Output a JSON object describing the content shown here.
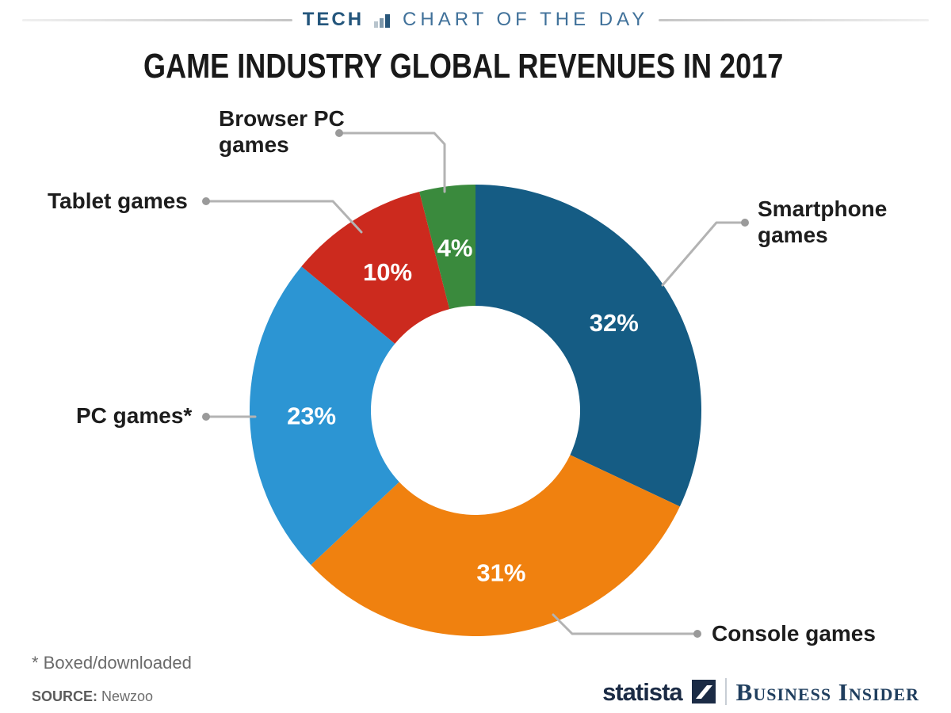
{
  "header": {
    "tech_label": "TECH",
    "series_label": "CHART OF THE DAY",
    "tech_color": "#24567c",
    "series_color": "#40719a"
  },
  "title": "GAME INDUSTRY GLOBAL REVENUES IN 2017",
  "chart_data": {
    "type": "pie",
    "donut": true,
    "title": "GAME INDUSTRY GLOBAL REVENUES IN 2017",
    "start_angle_deg": 0,
    "direction": "clockwise",
    "value_suffix": "%",
    "legend_position": "callout-labels",
    "slices": [
      {
        "label": "Smartphone games",
        "value": 32,
        "color": "#155c84"
      },
      {
        "label": "Console games",
        "value": 31,
        "color": "#f0810f"
      },
      {
        "label": "PC games*",
        "value": 23,
        "color": "#2c95d3"
      },
      {
        "label": "Tablet games",
        "value": 10,
        "color": "#cc2a1e"
      },
      {
        "label": "Browser PC games",
        "value": 4,
        "color": "#3a8a3d"
      }
    ],
    "leader_line_color": "#b3b3b3"
  },
  "footnote": "* Boxed/downloaded",
  "source": {
    "prefix": "SOURCE:",
    "name": "Newzoo"
  },
  "branding": {
    "statista": "statista",
    "business_insider": "Business Insider",
    "statista_color": "#1b2b45",
    "business_insider_color": "#1f3e5e"
  }
}
